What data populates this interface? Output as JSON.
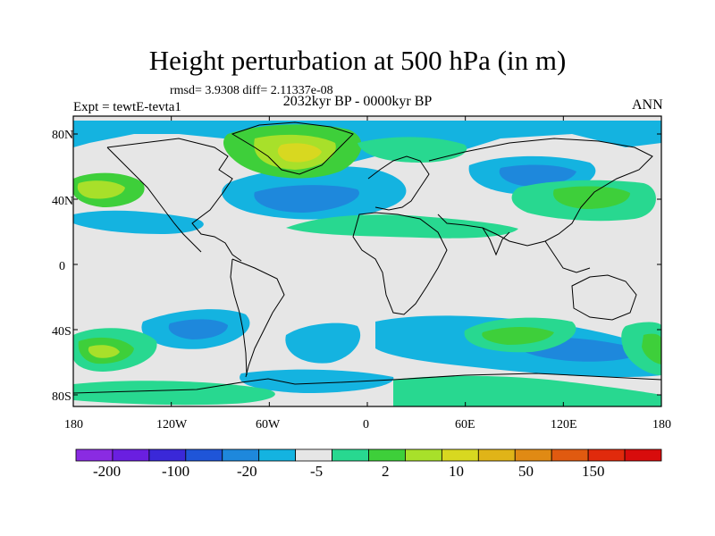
{
  "title": "Height perturbation at 500 hPa (in m)",
  "stats": "rmsd= 3.9308 diff= 2.11337e-08",
  "experiment": "Expt = tewtE-tevta1",
  "period": "2032kyr BP - 0000kyr BP",
  "season": "ANN",
  "map": {
    "lat_labels": [
      "80N",
      "40N",
      "0",
      "40S",
      "80S"
    ],
    "lon_labels": [
      "180",
      "120W",
      "60W",
      "0",
      "60E",
      "120E",
      "180"
    ],
    "background_color": "#e6e6e6"
  },
  "colorbar": {
    "colors": [
      "#8a2be2",
      "#6a1fe0",
      "#3a28d8",
      "#1f55d8",
      "#1e88dc",
      "#14b3e0",
      "#e6e6e6",
      "#28d890",
      "#3ecf3a",
      "#a8e02a",
      "#d8d820",
      "#e0b418",
      "#e08a14",
      "#e05a10",
      "#e02a0c",
      "#d80c0c"
    ],
    "labels": [
      "-200",
      "-100",
      "-20",
      "-5",
      "2",
      "10",
      "50",
      "150"
    ]
  },
  "field_colors": {
    "neg1": "#14b3e0",
    "neg2": "#1e88dc",
    "pos1": "#28d890",
    "pos2": "#3ecf3a",
    "pos3": "#a8e02a",
    "pos4": "#d8d820",
    "pos5": "#e0b418"
  }
}
